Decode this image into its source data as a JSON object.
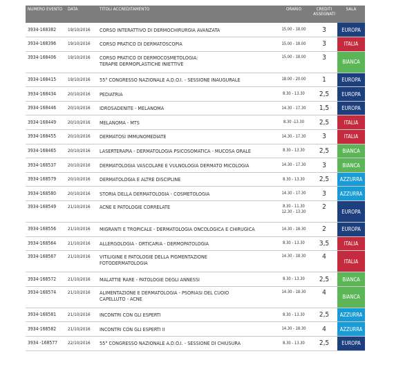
{
  "headers": {
    "numero": "NUMERO EVENTO",
    "data": "DATA",
    "titoli": "TITOLI ACCREDITAMENTO",
    "orario": "ORARIO",
    "crediti": "CREDITI ASSEGNATI",
    "sala": "SALA"
  },
  "colors": {
    "header_bg": "#7d7d7d",
    "EUROPA": "#1d3f7e",
    "ITALIA": "#c42b3e",
    "BIANCA": "#5cb556",
    "AZZURRA": "#1a9bd6"
  },
  "rows": [
    {
      "numero": "3934-168382",
      "data": "19/10/2016",
      "titolo": "CORSO INTERATTIVO DI DERMOCHIRURGIA AVANZATA",
      "orario": "15.00 - 18.00",
      "crediti": "3",
      "sala": "EUROPA"
    },
    {
      "numero": "3934-168396",
      "data": "19/10/2016",
      "titolo": "CORSO PRATICO DI DERMATOSCOPIA",
      "orario": "15.00 - 18.00",
      "crediti": "3",
      "sala": "ITALIA"
    },
    {
      "numero": "3934-168406",
      "data": "19/10/2016",
      "titolo": "CORSO PRATICO DI DERMOCOSMETOLOGIA:",
      "titolo2": "TERAPIE DERMOPLASTICHE INIETTIVE",
      "orario": "15.00 - 18.00",
      "crediti": "3",
      "sala": "BIANCA"
    },
    {
      "numero": "3934-168415",
      "data": "19/10/2016",
      "titolo": "55° CONGRESSO NAZIONALE A.D.O.I. - SESSIONE INAUGURALE",
      "orario": "18.00 - 20.00",
      "crediti": "1",
      "sala": "EUROPA"
    },
    {
      "numero": "3934-168434",
      "data": "20/10/2016",
      "titolo": "PEDIATRIA",
      "orario": "8.30 - 13.30",
      "crediti": "2,5",
      "sala": "EUROPA"
    },
    {
      "numero": "3934-168446",
      "data": "20/10/2016",
      "titolo": "IDROSADENITE - MELANOMA",
      "orario": "14.30 - 17.30",
      "crediti": "1,5",
      "sala": "EUROPA"
    },
    {
      "numero": "3934-168449",
      "data": "20/10/2016",
      "titolo": "MELANOMA - MTS",
      "orario": "8.30 -13.30",
      "crediti": "2,5",
      "sala": "ITALIA"
    },
    {
      "numero": "3934-168455",
      "data": "20/10/2016",
      "titolo": "DERMATOSI IMMUNOMEDIATE",
      "orario": "14.30 - 17.30",
      "crediti": "3",
      "sala": "ITALIA"
    },
    {
      "numero": "3934-168465",
      "data": "20/10/2016",
      "titolo": "LASERTERAPIA - DERMATOLOGIA PSICOSOMATICA - MUCOSA ORALE",
      "orario": "8.30 - 13.30",
      "crediti": "2,5",
      "sala": "BIANCA"
    },
    {
      "numero": "3934-168537",
      "data": "20/10/2016",
      "titolo": "DERMATOLOGIA VASCOLARE E VULNOLOGIA  DERMATO MICOLOGIA",
      "orario": "14.30 - 17.30",
      "crediti": "3",
      "sala": "BIANCA"
    },
    {
      "numero": "3934-168579",
      "data": "20/10/2016",
      "titolo": "DERMATOLOGIA E ALTRE DISCIPLINE",
      "orario": "8.30 - 13.30",
      "crediti": "2,5",
      "sala": "AZZURRA"
    },
    {
      "numero": "3934-168580",
      "data": "20/10/2016",
      "titolo": "STORIA DELLA DERMATOLOGIA - COSMETOLOGIA",
      "orario": "14.30 - 17.30",
      "crediti": "3",
      "sala": "AZZURRA"
    },
    {
      "numero": "3934-168549",
      "data": "21/10/2016",
      "titolo": "ACNE E PATOLOGIE CORRELATE",
      "orario": "8.30 - 11.30",
      "orario2": "12.30 - 13.30",
      "crediti": "2",
      "sala": "EUROPA"
    },
    {
      "numero": "3934-168556",
      "data": "21/10/2016",
      "titolo": "MIGRANTI E TROPICALE - DERMATOLOGIA ONCOLOGICA E CHIRUGICA",
      "orario": "14.30 - 18.30",
      "crediti": "2",
      "sala": "EUROPA"
    },
    {
      "numero": "3934-168564",
      "data": "21/10/2016",
      "titolo": "ALLERGOLOGIA - ORTICARIA - DERMOPATOLOGIA",
      "orario": "8.30 - 13.30",
      "crediti": "3,5",
      "sala": "ITALIA"
    },
    {
      "numero": "3934-168567",
      "data": "21/10/2016",
      "titolo": " VITILIGINE E PATOLOGIE DELLA PIGMENTAZIONE",
      "titolo2": "FOTODERMATOLOGIA",
      "orario": "14.30 - 18.30",
      "crediti": "4",
      "sala": "ITALIA"
    },
    {
      "numero": "3934-168572",
      "data": "21/10/2016",
      "titolo": "MALATTIE RARE - PATOLOGIE DEGLI ANNESSI",
      "orario": "8.30 - 13.30",
      "crediti": "2,5",
      "sala": "BIANCA"
    },
    {
      "numero": "3934-168574",
      "data": "21/10/2016",
      "titolo": "ALIMENTAZIONE E DERMATOLOGIA - PSORIASI DEL CUOIO",
      "titolo2": "CAPELLUTO - ACNE",
      "orario": "14.30 - 18.30",
      "crediti": "4",
      "sala": "BIANCA"
    },
    {
      "numero": "3934-168581",
      "data": "21/10/2016",
      "titolo": "INCONTRI CON GLI ESPERTI",
      "orario": "8.30 - 13.30",
      "crediti": "2,5",
      "sala": "AZZURRA"
    },
    {
      "numero": "3934-168582",
      "data": "21/10/2016",
      "titolo": "INCONTRI CON GLI ESPERTI II",
      "orario": "14.30 - 18.30",
      "crediti": "4",
      "sala": "AZZURRA"
    },
    {
      "numero": "3934 -168577",
      "data": "22/10/2016",
      "titolo": "55° CONGRESSO NAZIONALE A.D.O.I. - SESSIONE DI CHIUSURA",
      "orario": "8.30 - 13.30",
      "crediti": "2,5",
      "sala": "EUROPA"
    }
  ]
}
